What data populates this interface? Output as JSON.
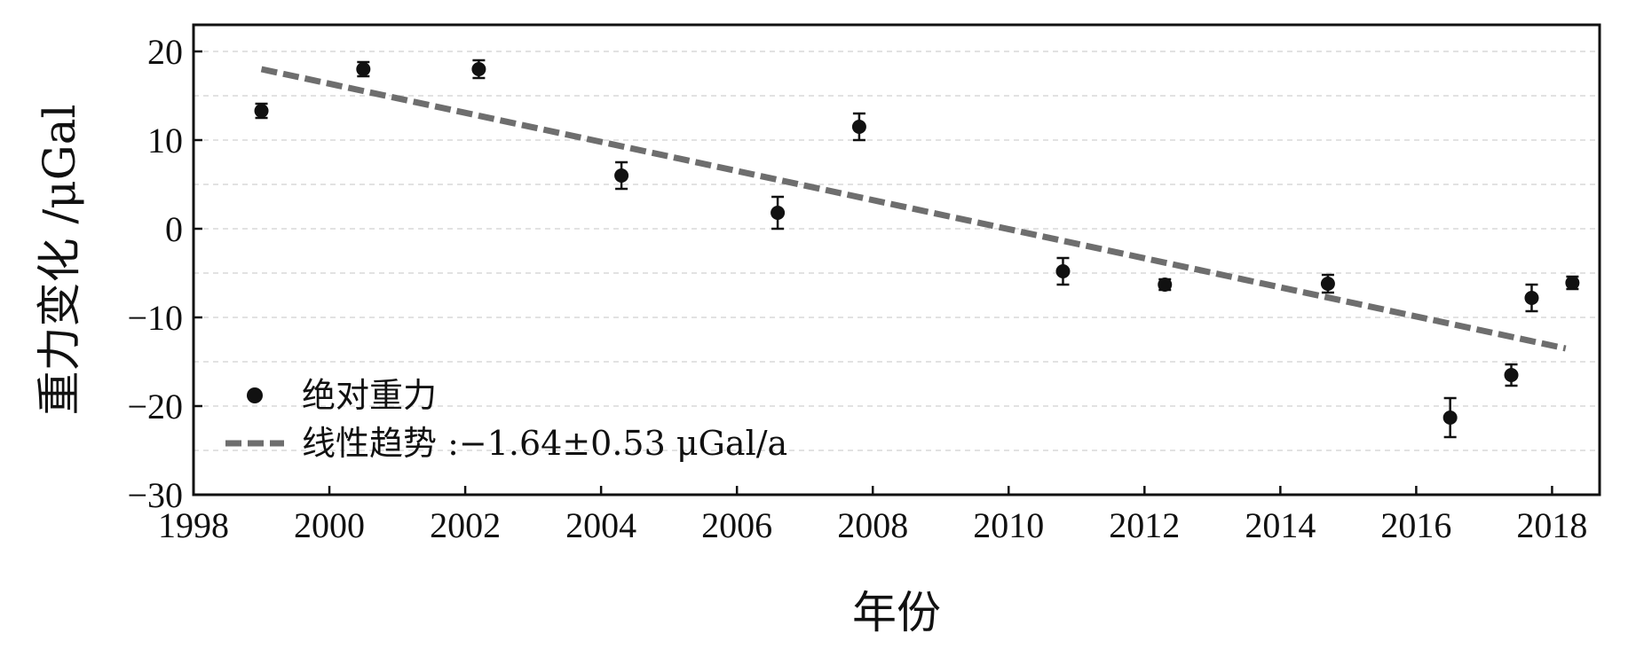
{
  "chart_data": {
    "type": "scatter",
    "xlabel": "年份",
    "ylabel": "重力变化 /μGal",
    "xlim": [
      1998,
      2018.7
    ],
    "ylim": [
      -30,
      23
    ],
    "xticks": [
      1998,
      2000,
      2002,
      2004,
      2006,
      2008,
      2010,
      2012,
      2014,
      2016,
      2018
    ],
    "yticks": [
      -30,
      -20,
      -10,
      0,
      10,
      20
    ],
    "ytick_labels": [
      "−30",
      "−20",
      "−10",
      "0",
      "10",
      "20"
    ],
    "grid": true,
    "legend_position": "bottom-left",
    "series": [
      {
        "name": "绝对重力",
        "kind": "points",
        "points": [
          {
            "x": 1999.0,
            "y": 13.3,
            "err": 0.8
          },
          {
            "x": 2000.5,
            "y": 18.0,
            "err": 0.8
          },
          {
            "x": 2002.2,
            "y": 18.0,
            "err": 1.0
          },
          {
            "x": 2004.3,
            "y": 6.0,
            "err": 1.5
          },
          {
            "x": 2006.6,
            "y": 1.8,
            "err": 1.8
          },
          {
            "x": 2007.8,
            "y": 11.5,
            "err": 1.5
          },
          {
            "x": 2010.8,
            "y": -4.8,
            "err": 1.5
          },
          {
            "x": 2012.3,
            "y": -6.3,
            "err": 0.6
          },
          {
            "x": 2014.7,
            "y": -6.2,
            "err": 1.0
          },
          {
            "x": 2016.5,
            "y": -21.3,
            "err": 2.2
          },
          {
            "x": 2017.4,
            "y": -16.5,
            "err": 1.2
          },
          {
            "x": 2017.7,
            "y": -7.8,
            "err": 1.5
          },
          {
            "x": 2018.3,
            "y": -6.1,
            "err": 0.7
          }
        ],
        "color": "#111111"
      },
      {
        "name": "线性趋势 :−1.64±0.53 μGal/a",
        "kind": "trend",
        "x": [
          1999.0,
          2018.2
        ],
        "y": [
          18.0,
          -13.5
        ],
        "color": "#6e6e6e"
      }
    ]
  }
}
